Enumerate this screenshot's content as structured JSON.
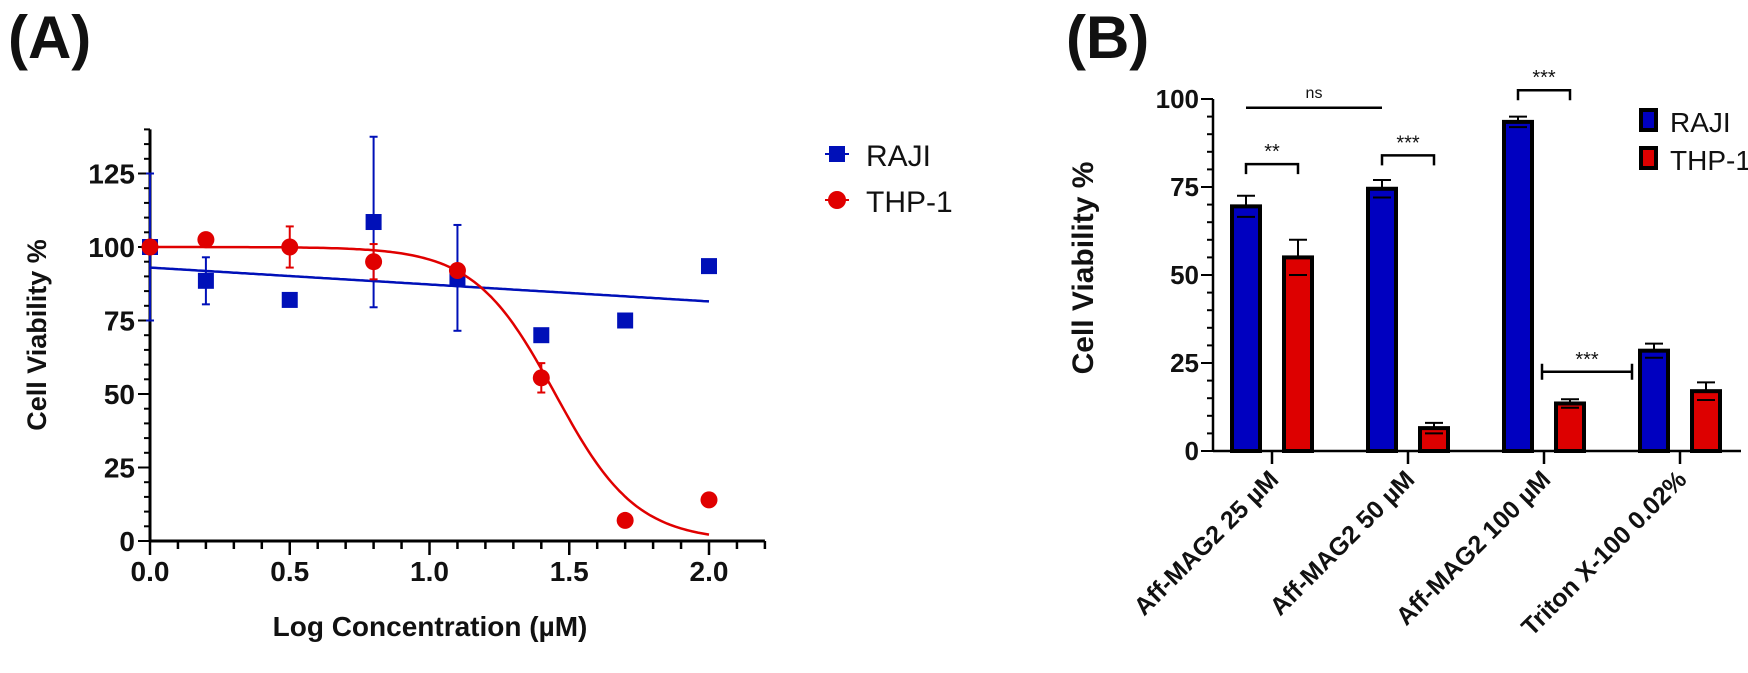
{
  "panels": {
    "a_label": "(A)",
    "b_label": "(B)"
  },
  "chart_data": [
    {
      "type": "scatter",
      "panel": "(A)",
      "xlabel": "Log Concentration (µM)",
      "ylabel": "Cell Viability %",
      "xlim": [
        0,
        2.2
      ],
      "ylim": [
        0,
        140
      ],
      "xticks": [
        "0.0",
        "0.5",
        "1.0",
        "1.5",
        "2.0"
      ],
      "xtick_values": [
        0,
        0.5,
        1.0,
        1.5,
        2.0
      ],
      "yticks": [
        "0",
        "25",
        "50",
        "75",
        "100",
        "125"
      ],
      "ytick_values": [
        0,
        25,
        50,
        75,
        100,
        125
      ],
      "legend_position": "right",
      "series": [
        {
          "name": "RAJI",
          "color": "#0010b8",
          "marker": "square",
          "x": [
            0,
            0.2,
            0.5,
            0.8,
            1.1,
            1.4,
            1.7,
            2.0
          ],
          "y": [
            100,
            88.5,
            82,
            108.5,
            89.5,
            70,
            75,
            93.5
          ],
          "err": [
            25,
            8,
            0,
            29,
            18,
            2,
            0,
            0
          ],
          "fit": {
            "type": "linear",
            "y_at_0": 93,
            "y_at_2": 81.5
          }
        },
        {
          "name": "THP-1",
          "color": "#e00000",
          "marker": "circle",
          "x": [
            0,
            0.2,
            0.5,
            0.8,
            1.1,
            1.4,
            1.7,
            2.0
          ],
          "y": [
            100,
            102.5,
            100,
            95,
            92,
            55.5,
            7,
            14
          ],
          "err": [
            0,
            0,
            7,
            6,
            0,
            5,
            0,
            0
          ],
          "fit": {
            "type": "sigmoid",
            "top": 100,
            "bottom": 0,
            "logIC50": 1.45,
            "hill": 3.0
          }
        }
      ]
    },
    {
      "type": "bar",
      "panel": "(B)",
      "ylabel": "Cell Viability %",
      "ylim": [
        0,
        100
      ],
      "yticks": [
        "0",
        "25",
        "50",
        "75",
        "100"
      ],
      "ytick_values": [
        0,
        25,
        50,
        75,
        100
      ],
      "categories": [
        "Aff-MAG2 25 µM",
        "Aff-MAG2 50 µM",
        "Aff-MAG2 100 µM",
        "Triton X-100 0.02%"
      ],
      "legend_position": "top-right",
      "series": [
        {
          "name": "RAJI",
          "color": "#0000c0",
          "values": [
            69.5,
            74.5,
            93.5,
            28.5
          ],
          "err": [
            3,
            2.5,
            1.5,
            2
          ]
        },
        {
          "name": "THP-1",
          "color": "#dd0000",
          "values": [
            55,
            6.5,
            13.5,
            17
          ],
          "err": [
            5,
            1.5,
            1.2,
            2.5
          ]
        }
      ],
      "annotations": [
        {
          "text": "ns",
          "type": "line",
          "from": "Aff-MAG2 25 µM / RAJI",
          "to": "Aff-MAG2 50 µM / RAJI",
          "level": 97.5
        },
        {
          "text": "**",
          "type": "bracket",
          "from": "Aff-MAG2 25 µM / RAJI",
          "to": "Aff-MAG2 25 µM / THP-1",
          "level": 81.5
        },
        {
          "text": "***",
          "type": "bracket",
          "from": "Aff-MAG2 50 µM / RAJI",
          "to": "Aff-MAG2 50 µM / THP-1",
          "level": 84
        },
        {
          "text": "***",
          "type": "bracket",
          "from": "Aff-MAG2 100 µM / RAJI",
          "to": "Aff-MAG2 100 µM / THP-1",
          "level": 102.5
        },
        {
          "text": "***",
          "type": "hbar",
          "from": "Aff-MAG2 100 µM gap",
          "to": "Triton X-100 0.02% / RAJI",
          "level": 22.5
        }
      ]
    }
  ]
}
